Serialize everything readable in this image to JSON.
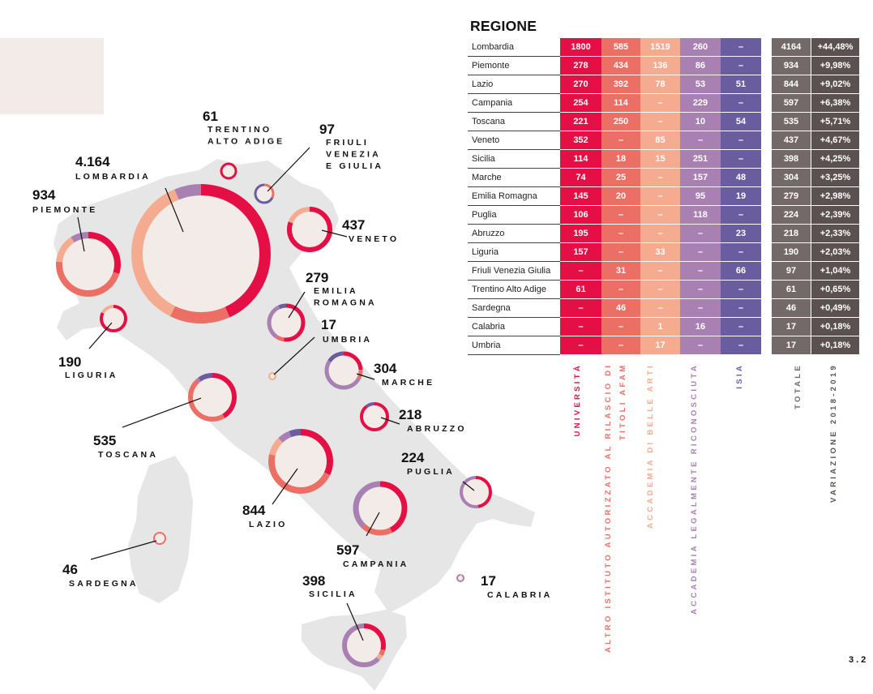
{
  "page_number": "3.2",
  "colors": {
    "universita": "#e30f45",
    "altro": "#ec6f66",
    "accademia_belle_arti": "#f4ab90",
    "accademia_legalmente": "#a880b2",
    "isia": "#6a5d9f",
    "totale": "#736968",
    "variazione": "#5b5150",
    "map_land": "#e6e6e6",
    "bubble_fill": "#f2ebe7"
  },
  "chart_data": [
    {
      "type": "table",
      "title": "REGIONE",
      "columns": [
        "UNIVERSITÀ",
        "ALTRO ISTITUTO AUTORIZZATO AL RILASCIO DI TITOLI AFAM",
        "ACCADEMIA DI BELLE ARTI",
        "ACCADEMIA LEGALMENTE RICONOSCIUTA",
        "ISIA",
        "TOTALE",
        "VARIAZIONE 2018-2019"
      ],
      "rows": [
        {
          "regione": "Lombardia",
          "universita": "1800",
          "altro": "585",
          "belle_arti": "1519",
          "legalmente": "260",
          "isia": "–",
          "totale": "4164",
          "variazione": "+44,48%"
        },
        {
          "regione": "Piemonte",
          "universita": "278",
          "altro": "434",
          "belle_arti": "136",
          "legalmente": "86",
          "isia": "–",
          "totale": "934",
          "variazione": "+9,98%"
        },
        {
          "regione": "Lazio",
          "universita": "270",
          "altro": "392",
          "belle_arti": "78",
          "legalmente": "53",
          "isia": "51",
          "totale": "844",
          "variazione": "+9,02%"
        },
        {
          "regione": "Campania",
          "universita": "254",
          "altro": "114",
          "belle_arti": "–",
          "legalmente": "229",
          "isia": "–",
          "totale": "597",
          "variazione": "+6,38%"
        },
        {
          "regione": "Toscana",
          "universita": "221",
          "altro": "250",
          "belle_arti": "–",
          "legalmente": "10",
          "isia": "54",
          "totale": "535",
          "variazione": "+5,71%"
        },
        {
          "regione": "Veneto",
          "universita": "352",
          "altro": "–",
          "belle_arti": "85",
          "legalmente": "–",
          "isia": "–",
          "totale": "437",
          "variazione": "+4,67%"
        },
        {
          "regione": "Sicilia",
          "universita": "114",
          "altro": "18",
          "belle_arti": "15",
          "legalmente": "251",
          "isia": "–",
          "totale": "398",
          "variazione": "+4,25%"
        },
        {
          "regione": "Marche",
          "universita": "74",
          "altro": "25",
          "belle_arti": "–",
          "legalmente": "157",
          "isia": "48",
          "totale": "304",
          "variazione": "+3,25%"
        },
        {
          "regione": "Emilia Romagna",
          "universita": "145",
          "altro": "20",
          "belle_arti": "–",
          "legalmente": "95",
          "isia": "19",
          "totale": "279",
          "variazione": "+2,98%"
        },
        {
          "regione": "Puglia",
          "universita": "106",
          "altro": "–",
          "belle_arti": "–",
          "legalmente": "118",
          "isia": "–",
          "totale": "224",
          "variazione": "+2,39%"
        },
        {
          "regione": "Abruzzo",
          "universita": "195",
          "altro": "–",
          "belle_arti": "–",
          "legalmente": "–",
          "isia": "23",
          "totale": "218",
          "variazione": "+2,33%"
        },
        {
          "regione": "Liguria",
          "universita": "157",
          "altro": "–",
          "belle_arti": "33",
          "legalmente": "–",
          "isia": "–",
          "totale": "190",
          "variazione": "+2,03%"
        },
        {
          "regione": "Friuli Venezia Giulia",
          "universita": "–",
          "altro": "31",
          "belle_arti": "–",
          "legalmente": "–",
          "isia": "66",
          "totale": "97",
          "variazione": "+1,04%"
        },
        {
          "regione": "Trentino Alto Adige",
          "universita": "61",
          "altro": "–",
          "belle_arti": "–",
          "legalmente": "–",
          "isia": "–",
          "totale": "61",
          "variazione": "+0,65%"
        },
        {
          "regione": "Sardegna",
          "universita": "–",
          "altro": "46",
          "belle_arti": "–",
          "legalmente": "–",
          "isia": "–",
          "totale": "46",
          "variazione": "+0,49%"
        },
        {
          "regione": "Calabria",
          "universita": "–",
          "altro": "–",
          "belle_arti": "1",
          "legalmente": "16",
          "isia": "–",
          "totale": "17",
          "variazione": "+0,18%"
        },
        {
          "regione": "Umbria",
          "universita": "–",
          "altro": "–",
          "belle_arti": "17",
          "legalmente": "–",
          "isia": "–",
          "totale": "17",
          "variazione": "+0,18%"
        }
      ]
    },
    {
      "type": "pie",
      "map_bubbles": [
        {
          "value_label": "4.164",
          "name_lines": [
            "LOMBARDIA"
          ],
          "total": 4164,
          "parts": [
            1800,
            585,
            1519,
            260,
            0
          ]
        },
        {
          "value_label": "934",
          "name_lines": [
            "PIEMONTE"
          ],
          "total": 934,
          "parts": [
            278,
            434,
            136,
            86,
            0
          ]
        },
        {
          "value_label": "61",
          "name_lines": [
            "TRENTINO",
            "ALTO ADIGE"
          ],
          "total": 61,
          "parts": [
            61,
            0,
            0,
            0,
            0
          ]
        },
        {
          "value_label": "97",
          "name_lines": [
            "FRIULI",
            "VENEZIA",
            "E GIULIA"
          ],
          "total": 97,
          "parts": [
            0,
            31,
            0,
            0,
            66
          ]
        },
        {
          "value_label": "437",
          "name_lines": [
            "VENETO"
          ],
          "total": 437,
          "parts": [
            352,
            0,
            85,
            0,
            0
          ]
        },
        {
          "value_label": "279",
          "name_lines": [
            "EMILIA",
            "ROMAGNA"
          ],
          "total": 279,
          "parts": [
            145,
            20,
            0,
            95,
            19
          ]
        },
        {
          "value_label": "190",
          "name_lines": [
            "LIGURIA"
          ],
          "total": 190,
          "parts": [
            157,
            0,
            33,
            0,
            0
          ]
        },
        {
          "value_label": "17",
          "name_lines": [
            "UMBRIA"
          ],
          "total": 17,
          "parts": [
            0,
            0,
            17,
            0,
            0
          ]
        },
        {
          "value_label": "304",
          "name_lines": [
            "MARCHE"
          ],
          "total": 304,
          "parts": [
            74,
            25,
            0,
            157,
            48
          ]
        },
        {
          "value_label": "535",
          "name_lines": [
            "TOSCANA"
          ],
          "total": 535,
          "parts": [
            221,
            250,
            0,
            10,
            54
          ]
        },
        {
          "value_label": "218",
          "name_lines": [
            "ABRUZZO"
          ],
          "total": 218,
          "parts": [
            195,
            0,
            0,
            0,
            23
          ]
        },
        {
          "value_label": "844",
          "name_lines": [
            "LAZIO"
          ],
          "total": 844,
          "parts": [
            270,
            392,
            78,
            53,
            51
          ]
        },
        {
          "value_label": "224",
          "name_lines": [
            "PUGLIA"
          ],
          "total": 224,
          "parts": [
            106,
            0,
            0,
            118,
            0
          ]
        },
        {
          "value_label": "597",
          "name_lines": [
            "CAMPANIA"
          ],
          "total": 597,
          "parts": [
            254,
            114,
            0,
            229,
            0
          ]
        },
        {
          "value_label": "46",
          "name_lines": [
            "SARDEGNA"
          ],
          "total": 46,
          "parts": [
            0,
            46,
            0,
            0,
            0
          ]
        },
        {
          "value_label": "398",
          "name_lines": [
            "SICILIA"
          ],
          "total": 398,
          "parts": [
            114,
            18,
            15,
            251,
            0
          ]
        },
        {
          "value_label": "17",
          "name_lines": [
            "CALABRIA"
          ],
          "total": 17,
          "parts": [
            0,
            0,
            1,
            16,
            0
          ]
        }
      ]
    }
  ]
}
